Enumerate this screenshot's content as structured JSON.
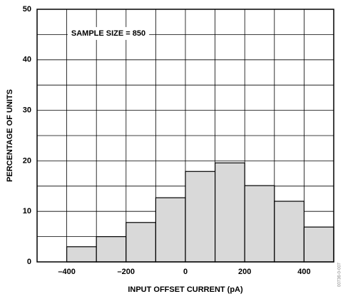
{
  "chart_data": {
    "type": "histogram",
    "x_label": "INPUT OFFSET CURRENT (pA)",
    "y_label": "PERCENTAGE OF UNITS",
    "annotation": "SAMPLE SIZE = 850",
    "figure_id": "00736-0-007",
    "bins": [
      -400,
      -300,
      -200,
      -100,
      0,
      100,
      200,
      300,
      400,
      500
    ],
    "values": [
      3,
      5,
      7.8,
      12.7,
      17.9,
      19.6,
      15.1,
      12,
      6.9
    ],
    "color": "#d9d9d9",
    "xlim": [
      -500,
      500
    ],
    "xticks": [
      {
        "value": -400,
        "label": "–400"
      },
      {
        "value": -200,
        "label": "–200"
      },
      0,
      200,
      400
    ],
    "xminor": [
      -300,
      -100,
      100,
      300
    ],
    "ylim": [
      0,
      50
    ],
    "yticks": [
      0,
      10,
      20,
      30,
      40,
      50
    ],
    "yminor": [
      5,
      15,
      25,
      35,
      45
    ],
    "grid": true
  }
}
